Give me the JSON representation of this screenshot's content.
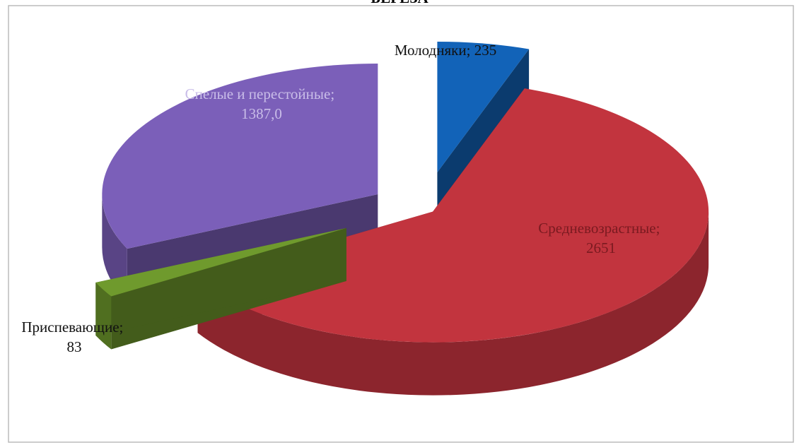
{
  "chart_data": {
    "type": "pie3d",
    "title": "БЕРЕЗА",
    "categories": [
      "Молодняки",
      "Средневозрастные",
      "Приспевающие",
      "Спелые и перестойные"
    ],
    "values": [
      235,
      2651,
      83,
      1387
    ],
    "value_labels": [
      "235",
      "2651",
      "83",
      "1387,0"
    ],
    "label_separator": "; ",
    "colors": [
      "#1263b8",
      "#c2343e",
      "#6f9a2d",
      "#7b5fb9"
    ]
  }
}
